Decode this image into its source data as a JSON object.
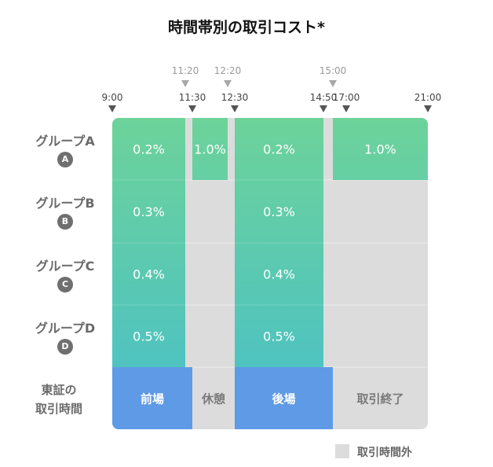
{
  "chart_data": {
    "type": "table",
    "title": "時間帯別の取引コスト*",
    "time_ticks_main": [
      "9:00",
      "11:30",
      "12:30",
      "14:50",
      "17:00",
      "21:00"
    ],
    "time_ticks_sub": [
      "11:20",
      "12:20",
      "15:00"
    ],
    "rows": [
      {
        "name": "グループA",
        "badge": "A",
        "cells": [
          {
            "start": "9:00",
            "end": "11:20",
            "value": "0.2%"
          },
          {
            "start": "11:30",
            "end": "12:20",
            "value": "1.0%"
          },
          {
            "start": "12:30",
            "end": "14:50",
            "value": "0.2%"
          },
          {
            "start": "15:00",
            "end": "21:00",
            "value": "1.0%"
          }
        ]
      },
      {
        "name": "グループB",
        "badge": "B",
        "cells": [
          {
            "start": "9:00",
            "end": "11:20",
            "value": "0.3%"
          },
          {
            "start": "12:30",
            "end": "14:50",
            "value": "0.3%"
          }
        ]
      },
      {
        "name": "グループC",
        "badge": "C",
        "cells": [
          {
            "start": "9:00",
            "end": "11:20",
            "value": "0.4%"
          },
          {
            "start": "12:30",
            "end": "14:50",
            "value": "0.4%"
          }
        ]
      },
      {
        "name": "グループD",
        "badge": "D",
        "cells": [
          {
            "start": "9:00",
            "end": "11:20",
            "value": "0.5%"
          },
          {
            "start": "12:30",
            "end": "14:50",
            "value": "0.5%"
          }
        ]
      }
    ],
    "tse_row": {
      "label_line1": "東証の",
      "label_line2": "取引時間",
      "sessions": [
        {
          "start": "9:00",
          "end": "11:30",
          "label": "前場",
          "type": "session"
        },
        {
          "start": "11:30",
          "end": "12:30",
          "label": "休憩",
          "type": "break"
        },
        {
          "start": "12:30",
          "end": "15:00",
          "label": "後場",
          "type": "session"
        },
        {
          "start": "15:00",
          "end": "21:00",
          "label": "取引終了",
          "type": "closed"
        }
      ]
    },
    "legend": [
      {
        "label": "取引時間外",
        "color": "#dcdcdc"
      }
    ],
    "colors": {
      "cost_top": "#6dd39a",
      "cost_bottom": "#4fc3c0",
      "session": "#5e9ae6",
      "off_hours": "#dcdcdc",
      "divider": "#ececec"
    }
  }
}
